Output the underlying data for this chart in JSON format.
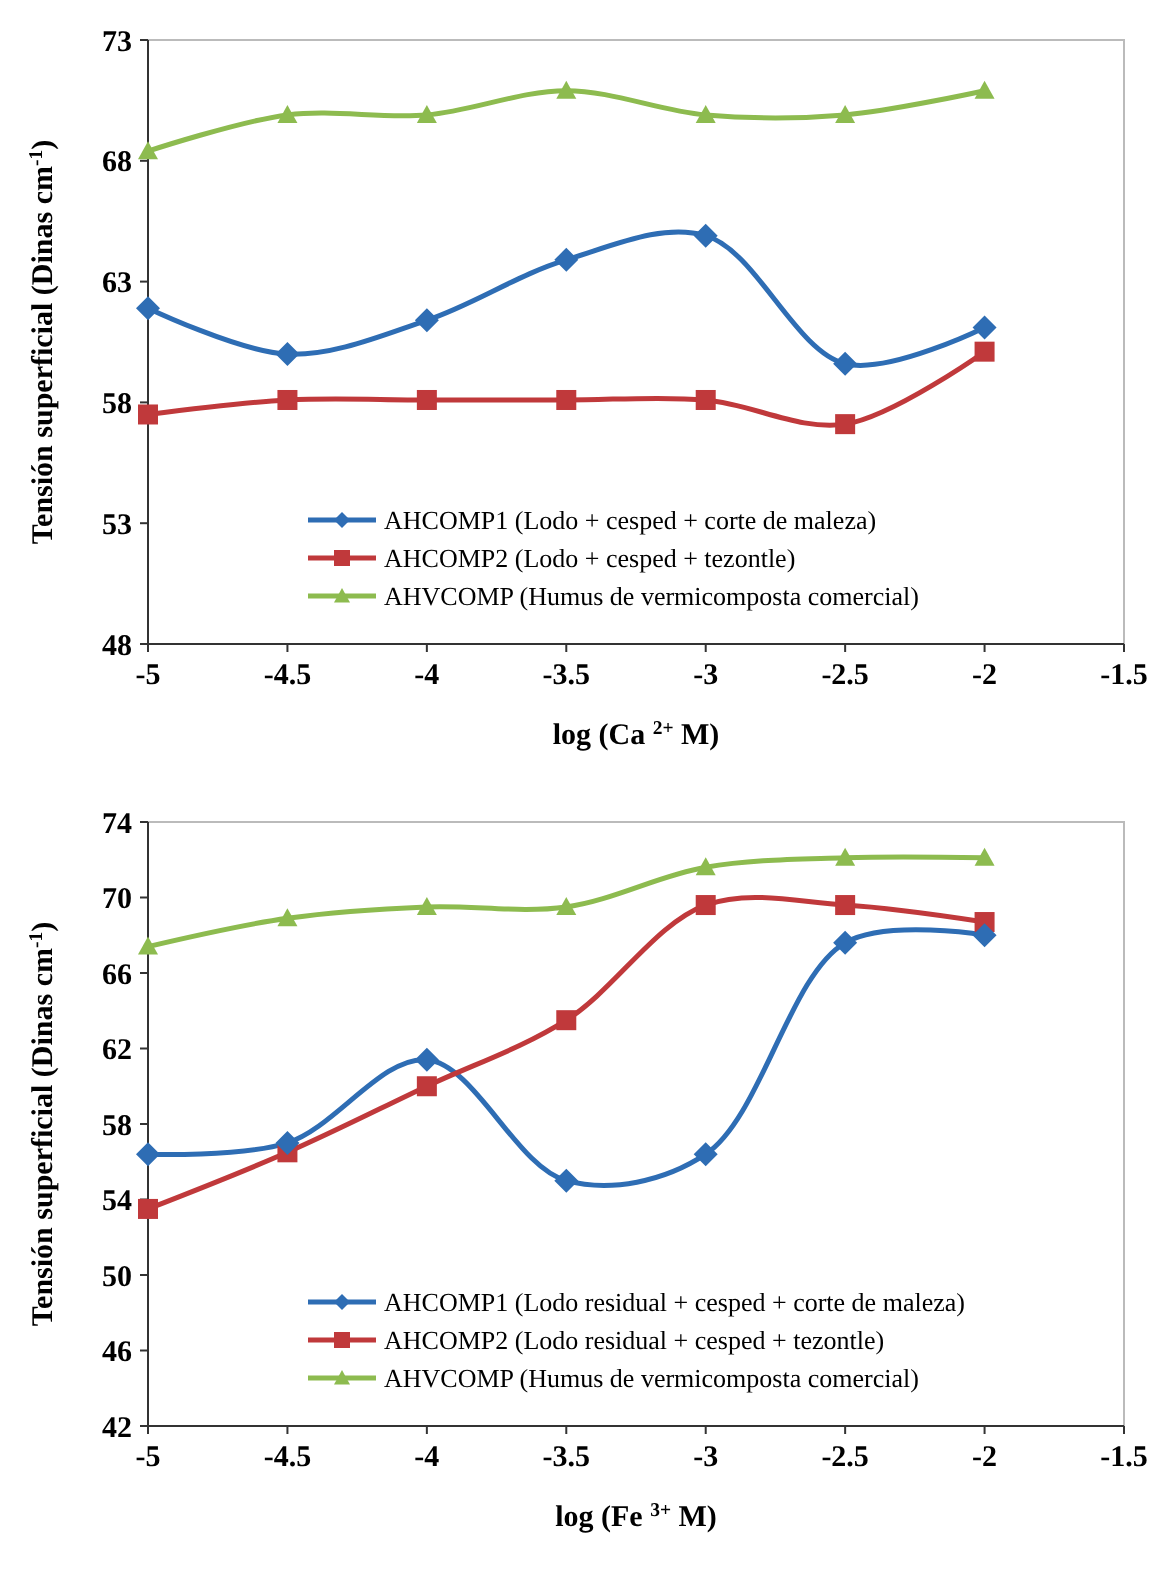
{
  "chart_data": [
    {
      "type": "line",
      "xlabel": "log (Ca $^{2+}$ M)",
      "ylabel": "Tensión superficial (Dinas cm$^{-1}$)",
      "x": [
        -5,
        -4.5,
        -4,
        -3.5,
        -3,
        -2.5,
        -2
      ],
      "xlim": [
        -5,
        -1.5
      ],
      "xticks": [
        -5,
        -4.5,
        -4,
        -3.5,
        -3,
        -2.5,
        -2,
        -1.5
      ],
      "ylim": [
        48,
        73
      ],
      "yticks": [
        48,
        53,
        58,
        63,
        68,
        73
      ],
      "legend": "bottom",
      "grid": false,
      "series": [
        {
          "name": "AHCOMP1 (Lodo + cesped + corte de maleza)",
          "color": "#2e6db4",
          "marker": "diamond",
          "values": [
            61.9,
            60.0,
            61.4,
            63.9,
            64.9,
            59.6,
            61.1
          ]
        },
        {
          "name": "AHCOMP2 (Lodo + cesped + tezontle)",
          "color": "#c0393b",
          "marker": "square",
          "values": [
            57.5,
            58.1,
            58.1,
            58.1,
            58.1,
            57.1,
            60.1
          ]
        },
        {
          "name": "AHVCOMP (Humus de vermicomposta comercial)",
          "color": "#8dbb4f",
          "marker": "triangle",
          "values": [
            68.4,
            69.9,
            69.9,
            70.9,
            69.9,
            69.9,
            70.9
          ]
        }
      ]
    },
    {
      "type": "line",
      "xlabel": "log (Fe $^{3+}$ M)",
      "ylabel": "Tensión superficial (Dinas cm$^{-1}$)",
      "x": [
        -5,
        -4.5,
        -4,
        -3.5,
        -3,
        -2.5,
        -2
      ],
      "xlim": [
        -5,
        -1.5
      ],
      "xticks": [
        -5,
        -4.5,
        -4,
        -3.5,
        -3,
        -2.5,
        -2,
        -1.5
      ],
      "ylim": [
        42,
        74
      ],
      "yticks": [
        42,
        46,
        50,
        54,
        58,
        62,
        66,
        70,
        74
      ],
      "legend": "bottom",
      "grid": false,
      "series": [
        {
          "name": "AHCOMP1 (Lodo residual + cesped + corte de maleza)",
          "color": "#2e6db4",
          "marker": "diamond",
          "values": [
            56.4,
            57.0,
            61.4,
            55.0,
            56.4,
            67.6,
            68.0
          ]
        },
        {
          "name": "AHCOMP2 (Lodo residual + cesped + tezontle)",
          "color": "#c0393b",
          "marker": "square",
          "values": [
            53.5,
            56.5,
            60.0,
            63.5,
            69.6,
            69.6,
            68.7
          ]
        },
        {
          "name": "AHVCOMP (Humus de vermicomposta comercial)",
          "color": "#8dbb4f",
          "marker": "triangle",
          "values": [
            67.4,
            68.9,
            69.5,
            69.5,
            71.6,
            72.1,
            72.1
          ]
        }
      ]
    }
  ]
}
